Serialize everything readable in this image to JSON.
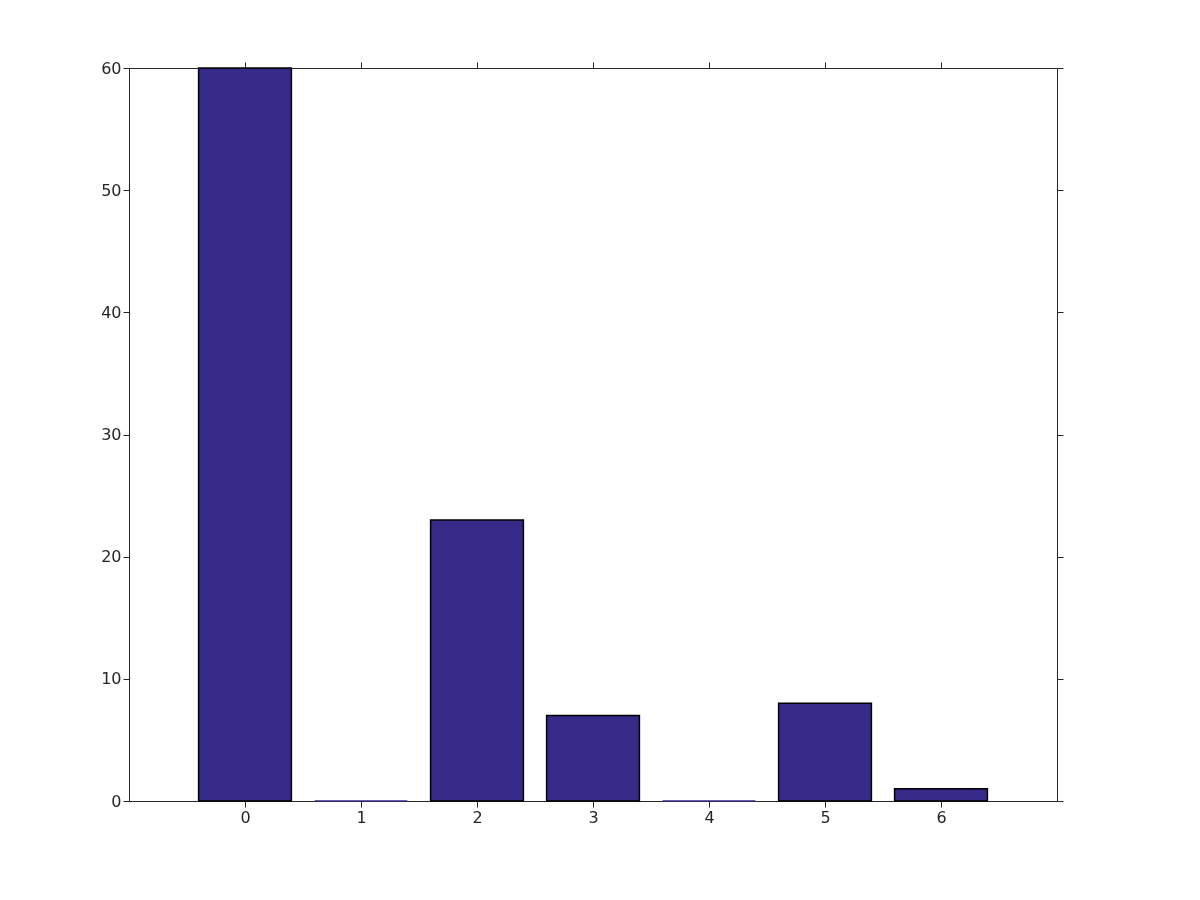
{
  "chart_data": {
    "type": "bar",
    "x": [
      0,
      1,
      2,
      3,
      4,
      5,
      6
    ],
    "values": [
      60,
      0,
      23,
      7,
      0,
      8,
      1
    ],
    "color": "#352a87",
    "xlim": [
      -1,
      7
    ],
    "xticks": [
      0,
      1,
      2,
      3,
      4,
      5,
      6
    ],
    "ylim": [
      0,
      60
    ],
    "yticks": [
      0,
      10,
      20,
      30,
      40,
      50,
      60
    ],
    "grid": false
  }
}
